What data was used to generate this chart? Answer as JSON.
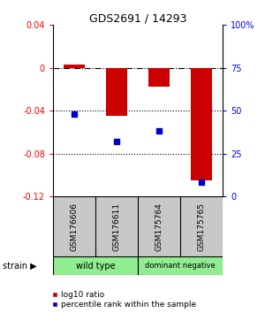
{
  "title": "GDS2691 / 14293",
  "samples": [
    "GSM176606",
    "GSM176611",
    "GSM175764",
    "GSM175765"
  ],
  "log10_ratio": [
    0.003,
    -0.045,
    -0.018,
    -0.105
  ],
  "percentile_rank": [
    48,
    32,
    38,
    8
  ],
  "bar_color": "#cc0000",
  "dot_color": "#0000cc",
  "ylim_left": [
    -0.12,
    0.04
  ],
  "ylim_right": [
    0,
    100
  ],
  "yticks_left": [
    0.04,
    0,
    -0.04,
    -0.08,
    -0.12
  ],
  "yticks_right": [
    100,
    75,
    50,
    25,
    0
  ],
  "hline_y": [
    0,
    -0.04,
    -0.08
  ],
  "hline_styles": [
    "dashdot",
    "dotted",
    "dotted"
  ],
  "background_color": "#ffffff",
  "legend_items": [
    "log10 ratio",
    "percentile rank within the sample"
  ],
  "strain_label": "strain",
  "group_ranges": [
    [
      -0.5,
      1.5,
      "wild type"
    ],
    [
      1.5,
      3.5,
      "dominant negative"
    ]
  ],
  "group_color": "#90ee90",
  "sample_cell_color": "#c8c8c8",
  "bar_width": 0.5
}
